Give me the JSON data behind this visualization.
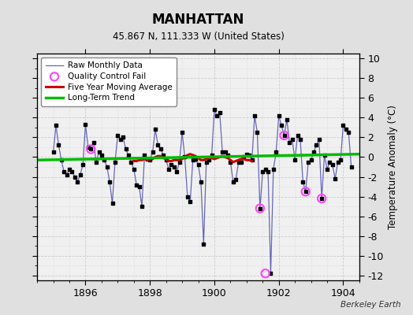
{
  "title": "MANHATTAN",
  "subtitle": "45.867 N, 111.333 W (United States)",
  "ylabel": "Temperature Anomaly (°C)",
  "watermark": "Berkeley Earth",
  "xlim": [
    1894.5,
    1904.5
  ],
  "ylim": [
    -12.5,
    10.5
  ],
  "yticks": [
    -12,
    -10,
    -8,
    -6,
    -4,
    -2,
    0,
    2,
    4,
    6,
    8,
    10
  ],
  "xticks": [
    1896,
    1898,
    1900,
    1902,
    1904
  ],
  "bg_color": "#e0e0e0",
  "plot_bg": "#f0f0f0",
  "raw_color": "#6666bb",
  "dot_color": "#000000",
  "ma_color": "#cc0000",
  "trend_color": "#00bb00",
  "qc_color": "#ff44ff",
  "raw_data_x": [
    1895.0,
    1895.083,
    1895.167,
    1895.25,
    1895.333,
    1895.417,
    1895.5,
    1895.583,
    1895.667,
    1895.75,
    1895.833,
    1895.917,
    1896.0,
    1896.083,
    1896.167,
    1896.25,
    1896.333,
    1896.417,
    1896.5,
    1896.583,
    1896.667,
    1896.75,
    1896.833,
    1896.917,
    1897.0,
    1897.083,
    1897.167,
    1897.25,
    1897.333,
    1897.417,
    1897.5,
    1897.583,
    1897.667,
    1897.75,
    1897.833,
    1897.917,
    1898.0,
    1898.083,
    1898.167,
    1898.25,
    1898.333,
    1898.417,
    1898.5,
    1898.583,
    1898.667,
    1898.75,
    1898.833,
    1898.917,
    1899.0,
    1899.083,
    1899.167,
    1899.25,
    1899.333,
    1899.417,
    1899.5,
    1899.583,
    1899.667,
    1899.75,
    1899.833,
    1899.917,
    1900.0,
    1900.083,
    1900.167,
    1900.25,
    1900.333,
    1900.417,
    1900.5,
    1900.583,
    1900.667,
    1900.75,
    1900.833,
    1900.917,
    1901.0,
    1901.083,
    1901.167,
    1901.25,
    1901.333,
    1901.417,
    1901.5,
    1901.583,
    1901.667,
    1901.75,
    1901.833,
    1901.917,
    1902.0,
    1902.083,
    1902.167,
    1902.25,
    1902.333,
    1902.417,
    1902.5,
    1902.583,
    1902.667,
    1902.75,
    1902.833,
    1902.917,
    1903.0,
    1903.083,
    1903.167,
    1903.25,
    1903.333,
    1903.417,
    1903.5,
    1903.583,
    1903.667,
    1903.75,
    1903.833,
    1903.917,
    1904.0,
    1904.083,
    1904.167,
    1904.25
  ],
  "raw_data_y": [
    0.5,
    3.2,
    1.2,
    -0.3,
    -1.5,
    -1.8,
    -1.2,
    -1.5,
    -2.0,
    -2.5,
    -1.8,
    -0.8,
    3.3,
    1.0,
    0.8,
    1.5,
    -0.5,
    0.5,
    0.2,
    -0.3,
    -1.0,
    -2.5,
    -4.7,
    -0.5,
    2.2,
    1.8,
    2.0,
    0.8,
    0.2,
    -0.5,
    -1.2,
    -2.8,
    -3.0,
    -5.0,
    0.2,
    -0.2,
    -0.3,
    0.5,
    2.8,
    1.2,
    0.8,
    0.2,
    -0.3,
    -1.2,
    -0.8,
    -1.0,
    -1.5,
    -0.5,
    2.5,
    0.0,
    -4.0,
    -4.5,
    -0.3,
    -0.2,
    -0.8,
    -2.5,
    -8.8,
    -0.5,
    -0.3,
    0.2,
    4.8,
    4.2,
    4.5,
    0.5,
    0.5,
    0.2,
    -0.5,
    -2.5,
    -2.3,
    -0.5,
    -0.5,
    0.0,
    0.3,
    0.2,
    -0.3,
    4.2,
    2.5,
    -5.2,
    -1.5,
    -1.2,
    -1.5,
    -11.8,
    -1.2,
    0.5,
    4.2,
    3.2,
    2.2,
    3.8,
    1.5,
    1.8,
    -0.3,
    2.2,
    1.8,
    -2.5,
    -3.5,
    -0.5,
    -0.3,
    0.5,
    1.2,
    1.8,
    -4.2,
    0.2,
    -1.2,
    -0.5,
    -0.8,
    -2.2,
    -0.5,
    -0.3,
    3.2,
    2.8,
    2.5,
    -1.0
  ],
  "qc_fail_x": [
    1896.167,
    1901.417,
    1901.583,
    1902.167,
    1902.833,
    1903.333
  ],
  "qc_fail_y": [
    0.8,
    -5.2,
    -11.8,
    2.2,
    -3.5,
    -4.2
  ],
  "ma_x": [
    1897.5,
    1897.583,
    1897.667,
    1897.75,
    1897.833,
    1897.917,
    1898.0,
    1898.083,
    1898.167,
    1898.25,
    1898.333,
    1898.417,
    1898.5,
    1898.583,
    1898.667,
    1898.75,
    1898.833,
    1898.917,
    1899.0,
    1899.083,
    1899.167,
    1899.25,
    1899.333,
    1899.417,
    1899.5,
    1899.583,
    1899.667,
    1899.75,
    1899.833,
    1899.917,
    1900.0,
    1900.083,
    1900.167,
    1900.25,
    1900.333,
    1900.417,
    1900.5,
    1900.583,
    1900.667,
    1900.75,
    1900.833,
    1900.917,
    1901.0,
    1901.083,
    1901.167
  ],
  "ma_y": [
    -0.4,
    -0.4,
    -0.3,
    -0.3,
    -0.2,
    -0.3,
    -0.2,
    -0.2,
    0.0,
    0.1,
    0.1,
    -0.1,
    -0.2,
    -0.4,
    -0.4,
    -0.3,
    -0.3,
    -0.3,
    -0.2,
    0.0,
    0.2,
    0.3,
    0.2,
    0.1,
    -0.1,
    -0.3,
    -0.3,
    -0.2,
    -0.1,
    -0.1,
    -0.2,
    -0.1,
    0.0,
    0.1,
    0.0,
    -0.1,
    -0.3,
    -0.5,
    -0.4,
    -0.3,
    -0.2,
    -0.2,
    -0.3,
    -0.3,
    -0.4
  ],
  "trend_x": [
    1894.5,
    1904.5
  ],
  "trend_y": [
    -0.3,
    0.3
  ]
}
